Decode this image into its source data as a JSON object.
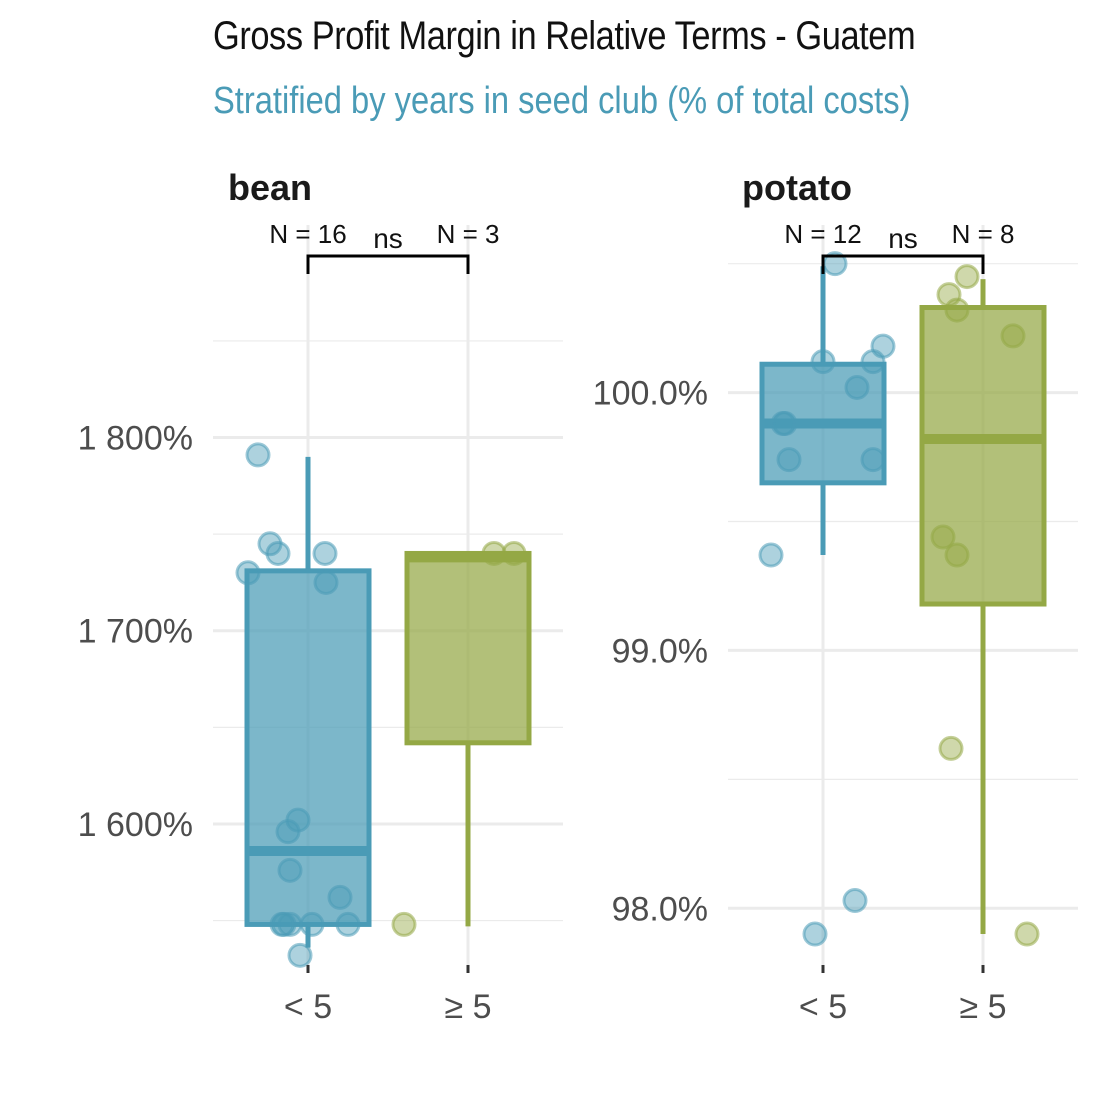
{
  "title": "Gross Profit Margin in Relative Terms - Guatem",
  "subtitle": "Stratified by years in seed club (% of total costs)",
  "colors": {
    "group_lt5": "#4a9bb6",
    "group_ge5": "#94a845",
    "grid": "#ebebeb"
  },
  "chart_data": [
    {
      "type": "box",
      "panel": "bean",
      "categories": [
        "< 5",
        "≥ 5"
      ],
      "y_ticks": [
        1600,
        1700,
        1800
      ],
      "y_tick_labels": [
        "1 600%",
        "1 700%",
        "1 800%"
      ],
      "ylim": [
        1527,
        1910
      ],
      "n_labels": [
        "N = 16",
        "N = 3"
      ],
      "significance": "ns",
      "boxes": [
        {
          "category": "< 5",
          "whisker_low": 1536,
          "q1": 1548,
          "median": 1586,
          "q3": 1731,
          "whisker_high": 1790
        },
        {
          "category": "≥ 5",
          "whisker_low": 1547,
          "q1": 1642,
          "median": 1738,
          "q3": 1740,
          "whisker_high": 1740
        }
      ],
      "points": [
        {
          "category": "< 5",
          "values": [
            1791,
            1745,
            1740,
            1730,
            1740,
            1725,
            1602,
            1596,
            1576,
            1562,
            1548,
            1548,
            1548,
            1548,
            1548,
            1532
          ]
        },
        {
          "category": "≥ 5",
          "values": [
            1548,
            1740,
            1740
          ]
        }
      ]
    },
    {
      "type": "box",
      "panel": "potato",
      "categories": [
        "< 5",
        "≥ 5"
      ],
      "y_ticks": [
        98.0,
        99.0,
        100.0
      ],
      "y_tick_labels": [
        "98.0%",
        "99.0%",
        "100.0%"
      ],
      "ylim": [
        97.78,
        100.65
      ],
      "n_labels": [
        "N = 12",
        "N = 8"
      ],
      "significance": "ns",
      "boxes": [
        {
          "category": "< 5",
          "whisker_low": 99.37,
          "q1": 99.65,
          "median": 99.88,
          "q3": 100.11,
          "whisker_high": 100.49
        },
        {
          "category": "≥ 5",
          "whisker_low": 97.9,
          "q1": 99.18,
          "median": 99.82,
          "q3": 100.33,
          "whisker_high": 100.44
        }
      ],
      "points": [
        {
          "category": "< 5",
          "values": [
            100.5,
            100.18,
            100.12,
            100.12,
            100.02,
            99.88,
            99.88,
            99.74,
            99.74,
            99.37,
            98.03,
            97.9
          ]
        },
        {
          "category": "≥ 5",
          "values": [
            100.45,
            100.38,
            100.32,
            100.22,
            99.44,
            99.37,
            98.62,
            97.9
          ]
        }
      ]
    }
  ]
}
